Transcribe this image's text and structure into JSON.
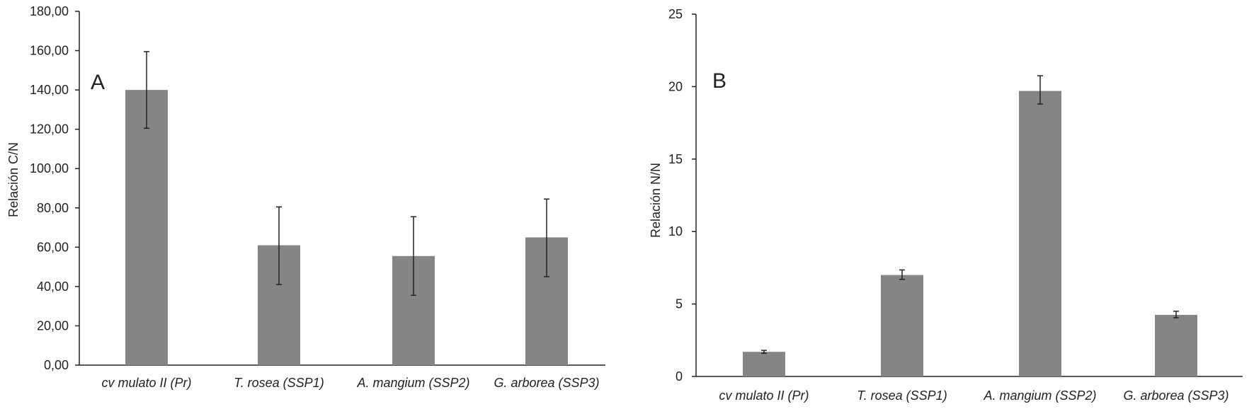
{
  "colors": {
    "bar": "#858585",
    "axis": "#222222",
    "error_bar": "#222222"
  },
  "chart_data": [
    {
      "type": "bar",
      "panel_label": "A",
      "ylabel": "Relación C/N",
      "categories": [
        "cv mulato II (Pr)",
        "T. rosea (SSP1)",
        "A. mangium (SSP2)",
        "G. arborea (SSP3)"
      ],
      "values": [
        140.0,
        61.0,
        55.5,
        65.0
      ],
      "error_low": [
        120.5,
        41.0,
        35.5,
        45.0
      ],
      "error_high": [
        159.5,
        80.5,
        75.5,
        84.5
      ],
      "ylim": [
        0,
        180
      ],
      "yticks": [
        0,
        20,
        40,
        60,
        80,
        100,
        120,
        140,
        160,
        180
      ],
      "ytick_labels": [
        "0,00",
        "20,00",
        "40,00",
        "60,00",
        "80,00",
        "100,00",
        "120,00",
        "140,00",
        "160,00",
        "180,00"
      ],
      "grid": false
    },
    {
      "type": "bar",
      "panel_label": "B",
      "ylabel": "Relación N/N",
      "categories": [
        "cv mulato II (Pr)",
        "T. rosea (SSP1)",
        "A. mangium (SSP2)",
        "G. arborea (SSP3)"
      ],
      "values": [
        1.7,
        7.0,
        19.7,
        4.25
      ],
      "error_low": [
        1.6,
        6.7,
        18.8,
        4.05
      ],
      "error_high": [
        1.8,
        7.35,
        20.75,
        4.5
      ],
      "ylim": [
        0,
        25
      ],
      "yticks": [
        0,
        5,
        10,
        15,
        20,
        25
      ],
      "ytick_labels": [
        "0",
        "5",
        "10",
        "15",
        "20",
        "25"
      ],
      "grid": false
    }
  ]
}
